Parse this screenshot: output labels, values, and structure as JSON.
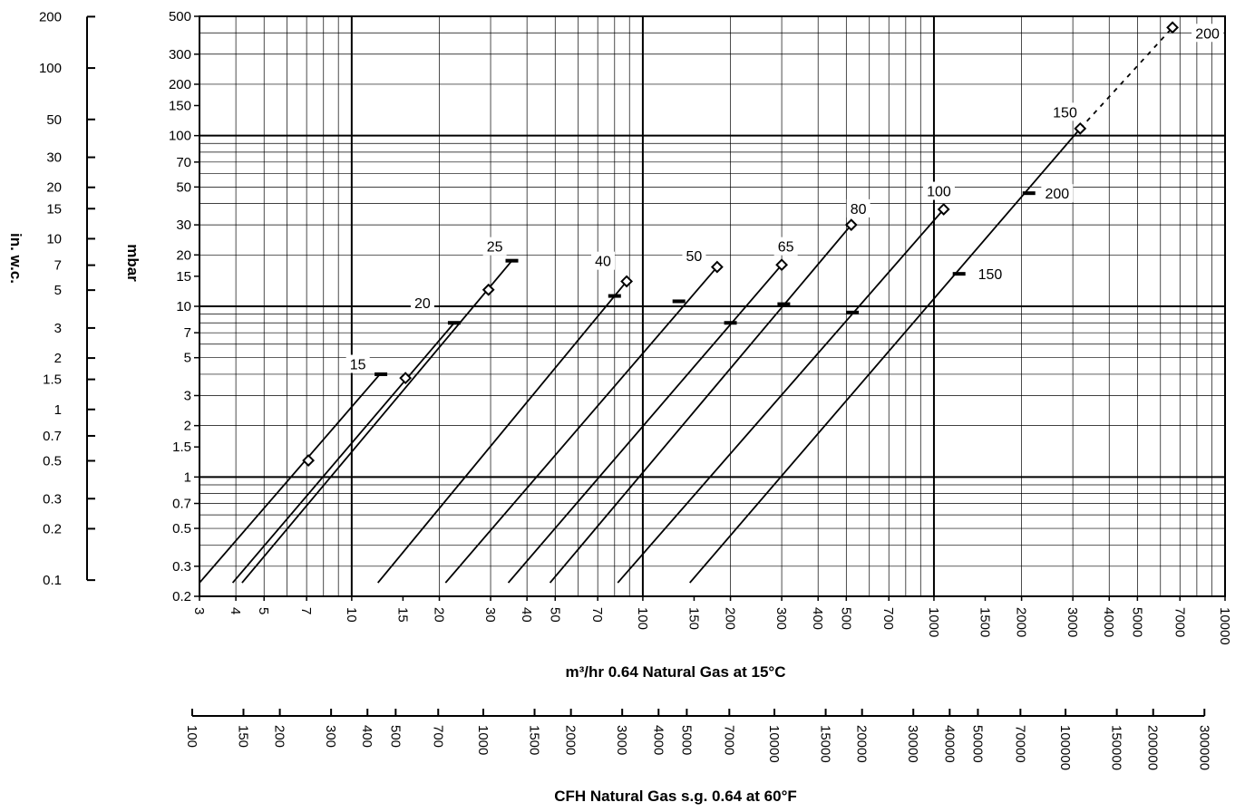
{
  "chart_data": {
    "type": "line",
    "title": "",
    "xlabel": "m³/hr 0.64 Natural Gas at 15°C",
    "xlabel2": "CFH Natural Gas s.g. 0.64 at 60°F",
    "ylabel": "mbar",
    "ylabel2": "in. w.c.",
    "x_scale": "log",
    "y_scale": "log",
    "xlim": [
      3,
      10000
    ],
    "ylim": [
      0.2,
      500
    ],
    "grid": true,
    "x_ticks": [
      3,
      4,
      5,
      7,
      10,
      15,
      20,
      30,
      40,
      50,
      70,
      100,
      150,
      200,
      300,
      400,
      500,
      700,
      1000,
      1500,
      2000,
      3000,
      4000,
      5000,
      7000,
      10000
    ],
    "y_ticks": [
      0.2,
      0.3,
      0.5,
      0.7,
      1,
      1.5,
      2,
      3,
      5,
      7,
      10,
      15,
      20,
      30,
      50,
      70,
      100,
      150,
      200,
      300,
      500
    ],
    "x_tick_labels": [
      "3",
      "4",
      "5",
      "7",
      "10",
      "15",
      "20",
      "30",
      "40",
      "50",
      "70",
      "100",
      "150",
      "200",
      "300",
      "400",
      "500",
      "700",
      "1000",
      "1500",
      "2000",
      "3000",
      "4000",
      "5000",
      "7000",
      "10000"
    ],
    "y_tick_labels": [
      "0.2",
      "0.3",
      "0.5",
      "0.7",
      "1",
      "1.5",
      "2",
      "3",
      "5",
      "7",
      "10",
      "15",
      "20",
      "30",
      "50",
      "70",
      "100",
      "150",
      "200",
      "300",
      "500"
    ],
    "cfh_ticks": [
      100,
      150,
      200,
      300,
      400,
      500,
      700,
      1000,
      1500,
      2000,
      3000,
      4000,
      5000,
      7000,
      10000,
      15000,
      20000,
      30000,
      40000,
      50000,
      70000,
      100000,
      150000,
      200000,
      300000
    ],
    "cfh_tick_labels": [
      "100",
      "150",
      "200",
      "300",
      "400",
      "500",
      "700",
      "1000",
      "1500",
      "2000",
      "3000",
      "4000",
      "5000",
      "7000",
      "10000",
      "15000",
      "20000",
      "30000",
      "40000",
      "50000",
      "70000",
      "100000",
      "150000",
      "200000",
      "300000"
    ],
    "inwc_ticks": [
      0.1,
      0.2,
      0.3,
      0.5,
      0.7,
      1,
      1.5,
      2,
      3,
      5,
      7,
      10,
      15,
      20,
      30,
      50,
      100,
      200
    ],
    "inwc_tick_labels": [
      "0.1",
      "0.2",
      "0.3",
      "0.5",
      "0.7",
      "1",
      "1.5",
      "2",
      "3",
      "5",
      "7",
      "10",
      "15",
      "20",
      "30",
      "50",
      "100",
      "200"
    ],
    "series": [
      {
        "name": "15",
        "points": [
          [
            3,
            0.24
          ],
          [
            12.5,
            4.0
          ]
        ],
        "diamond": [
          7.1,
          1.25
        ],
        "bar": [
          12.6,
          4.0
        ]
      },
      {
        "name": "20",
        "points": [
          [
            3.9,
            0.24
          ],
          [
            22.5,
            8.0
          ]
        ],
        "diamond": [
          15.3,
          3.8
        ],
        "bar": [
          22.5,
          8.0
        ]
      },
      {
        "name": "25",
        "points": [
          [
            4.2,
            0.24
          ],
          [
            35.5,
            18.5
          ]
        ],
        "diamond": [
          29.5,
          12.5
        ],
        "bar": [
          35.5,
          18.5
        ]
      },
      {
        "name": "40",
        "points": [
          [
            12.3,
            0.24
          ],
          [
            88,
            14.0
          ]
        ],
        "diamond": [
          88,
          14.0
        ],
        "bar": [
          80,
          11.5
        ]
      },
      {
        "name": "50",
        "points": [
          [
            21,
            0.24
          ],
          [
            180,
            17.0
          ]
        ],
        "diamond": [
          180,
          17.0
        ],
        "bar": [
          133,
          10.7
        ]
      },
      {
        "name": "65",
        "points": [
          [
            34.5,
            0.24
          ],
          [
            300,
            17.5
          ]
        ],
        "diamond": [
          300,
          17.5
        ],
        "bar": [
          200,
          8.0
        ]
      },
      {
        "name": "80",
        "points": [
          [
            48,
            0.24
          ],
          [
            520,
            30.0
          ]
        ],
        "diamond": [
          520,
          30.0
        ],
        "bar": [
          305,
          10.3
        ]
      },
      {
        "name": "100",
        "points": [
          [
            82,
            0.24
          ],
          [
            1080,
            37.0
          ]
        ],
        "diamond": [
          1080,
          37.0
        ],
        "bar": [
          525,
          9.2
        ]
      },
      {
        "name": "150",
        "points": [
          [
            145,
            0.24
          ],
          [
            3180,
            110.0
          ]
        ],
        "diamond": [
          3180,
          110.0
        ],
        "bar": [
          1220,
          15.5
        ]
      },
      {
        "name": "200",
        "points": [
          [
            3180,
            110.0
          ],
          [
            6600,
            430.0
          ]
        ],
        "diamond": [
          6600,
          430.0
        ],
        "bar": [
          2120,
          46.0
        ],
        "dashed": true
      }
    ],
    "labels": [
      {
        "text": "15",
        "x": 10.5,
        "y": 4.6
      },
      {
        "text": "20",
        "x": 17.5,
        "y": 10.5
      },
      {
        "text": "25",
        "x": 31.0,
        "y": 22.5
      },
      {
        "text": "40",
        "x": 73.0,
        "y": 18.5
      },
      {
        "text": "50",
        "x": 150.0,
        "y": 19.8
      },
      {
        "text": "65",
        "x": 310.0,
        "y": 22.5
      },
      {
        "text": "80",
        "x": 550.0,
        "y": 37.5
      },
      {
        "text": "100",
        "x": 1040.0,
        "y": 47.5
      },
      {
        "text": "150",
        "x": 2820.0,
        "y": 138.0
      },
      {
        "text": "200",
        "x": 2650.0,
        "y": 46.0
      },
      {
        "text": "150",
        "x": 1560.0,
        "y": 15.5
      },
      {
        "text": "200",
        "x": 8700.0,
        "y": 400.0
      }
    ]
  }
}
